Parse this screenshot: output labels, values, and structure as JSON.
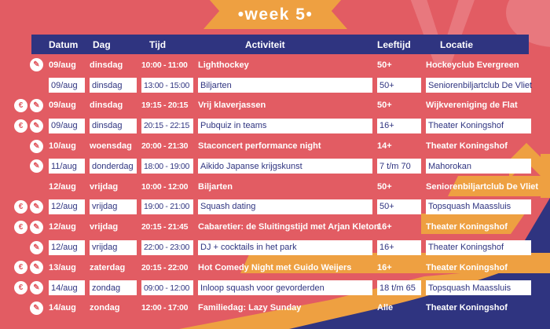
{
  "banner": {
    "title": "•week 5•"
  },
  "watermark": {
    "letters": "V"
  },
  "icons": {
    "euro": "€",
    "signup": "✎"
  },
  "icon_legend": {
    "euro": "euro-paid-activity-icon",
    "signup": "signup-pencil-icon"
  },
  "colors": {
    "background": "#e25c63",
    "navy": "#2f3480",
    "orange": "#eea041",
    "watermark": "#e8787e",
    "white": "#ffffff"
  },
  "table": {
    "columns": [
      "Datum",
      "Dag",
      "Tijd",
      "Activiteit",
      "Leeftijd",
      "Locatie"
    ],
    "rows": [
      {
        "icons": [
          "signup"
        ],
        "boxed": false,
        "datum": "09/aug",
        "dag": "dinsdag",
        "tijd": "10:00 - 11:00",
        "activiteit": "Lighthockey",
        "leeftijd": "50+",
        "locatie": "Hockeyclub Evergreen"
      },
      {
        "icons": [],
        "boxed": true,
        "datum": "09/aug",
        "dag": "dinsdag",
        "tijd": "13:00 - 15:00",
        "activiteit": "Biljarten",
        "leeftijd": "50+",
        "locatie": "Seniorenbiljartclub De Vliet"
      },
      {
        "icons": [
          "euro",
          "signup"
        ],
        "boxed": false,
        "datum": "09/aug",
        "dag": "dinsdag",
        "tijd": "19:15 - 20:15",
        "activiteit": "Vrij klaverjassen",
        "leeftijd": "50+",
        "locatie": "Wijkvereniging de Flat"
      },
      {
        "icons": [
          "euro",
          "signup"
        ],
        "boxed": true,
        "datum": "09/aug",
        "dag": "dinsdag",
        "tijd": "20:15 - 22:15",
        "activiteit": "Pubquiz in teams",
        "leeftijd": "16+",
        "locatie": "Theater Koningshof"
      },
      {
        "icons": [
          "signup"
        ],
        "boxed": false,
        "datum": "10/aug",
        "dag": "woensdag",
        "tijd": "20:00 - 21:30",
        "activiteit": "Staconcert performance night",
        "leeftijd": "14+",
        "locatie": "Theater Koningshof"
      },
      {
        "icons": [
          "signup"
        ],
        "boxed": true,
        "datum": "11/aug",
        "dag": "donderdag",
        "tijd": "18:00 - 19:00",
        "activiteit": "Aikido Japanse krijgskunst",
        "leeftijd": "7 t/m 70",
        "locatie": "Mahorokan"
      },
      {
        "icons": [],
        "boxed": false,
        "datum": "12/aug",
        "dag": "vrijdag",
        "tijd": "10:00 - 12:00",
        "activiteit": "Biljarten",
        "leeftijd": "50+",
        "locatie": "Seniorenbiljartclub De Vliet"
      },
      {
        "icons": [
          "euro",
          "signup"
        ],
        "boxed": true,
        "datum": "12/aug",
        "dag": "vrijdag",
        "tijd": "19:00 - 21:00",
        "activiteit": "Squash dating",
        "leeftijd": "50+",
        "locatie": "Topsquash Maassluis"
      },
      {
        "icons": [
          "euro",
          "signup"
        ],
        "boxed": false,
        "datum": "12/aug",
        "dag": "vrijdag",
        "tijd": "20:15 - 21:45",
        "activiteit": "Cabaretier: de Sluitingstijd met Arjan Kleton",
        "leeftijd": "16+",
        "locatie": "Theater Koningshof"
      },
      {
        "icons": [
          "signup"
        ],
        "boxed": true,
        "datum": "12/aug",
        "dag": "vrijdag",
        "tijd": "22:00 - 23:00",
        "activiteit": "DJ + cocktails in het park",
        "leeftijd": "16+",
        "locatie": "Theater Koningshof"
      },
      {
        "icons": [
          "euro",
          "signup"
        ],
        "boxed": false,
        "datum": "13/aug",
        "dag": "zaterdag",
        "tijd": "20:15 - 22:00",
        "activiteit": "Hot Comedy Night met Guido Weijers",
        "leeftijd": "16+",
        "locatie": "Theater Koningshof"
      },
      {
        "icons": [
          "euro",
          "signup"
        ],
        "boxed": true,
        "datum": "14/aug",
        "dag": "zondag",
        "tijd": "09:00 - 12:00",
        "activiteit": "Inloop squash voor gevorderden",
        "leeftijd": "18 t/m 65",
        "locatie": "Topsquash Maassluis"
      },
      {
        "icons": [
          "signup"
        ],
        "boxed": false,
        "datum": "14/aug",
        "dag": "zondag",
        "tijd": "12:00 - 17:00",
        "activiteit": "Familiedag: Lazy Sunday",
        "leeftijd": "Alle",
        "locatie": "Theater Koningshof"
      }
    ]
  }
}
